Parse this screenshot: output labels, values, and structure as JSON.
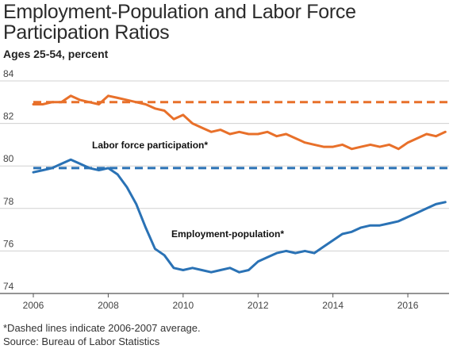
{
  "title": "Employment-Population and Labor Force Participation Ratios",
  "subtitle": "Ages 25-54, percent",
  "footnote": "*Dashed lines indicate 2006-2007 average.",
  "source": "Source: Bureau of Labor Statistics",
  "colors": {
    "lfp": "#e8702a",
    "emp": "#2a72b5",
    "grid": "#d0d0d0",
    "axis": "#555555"
  },
  "chart_data": {
    "type": "line",
    "title": "Employment-Population and Labor Force Participation Ratios",
    "subtitle": "Ages 25-54, percent",
    "xlabel": "",
    "ylabel": "",
    "xlim": [
      2006,
      2017.1
    ],
    "ylim": [
      74,
      84
    ],
    "x_ticks": [
      2006,
      2008,
      2010,
      2012,
      2014,
      2016
    ],
    "y_ticks": [
      74,
      76,
      78,
      80,
      82,
      84
    ],
    "grid": "horizontal",
    "series": [
      {
        "name": "Labor force participation*",
        "color": "#e8702a",
        "x": [
          2006.0,
          2006.25,
          2006.5,
          2006.75,
          2007.0,
          2007.25,
          2007.5,
          2007.75,
          2008.0,
          2008.25,
          2008.5,
          2008.75,
          2009.0,
          2009.25,
          2009.5,
          2009.75,
          2010.0,
          2010.25,
          2010.5,
          2010.75,
          2011.0,
          2011.25,
          2011.5,
          2011.75,
          2012.0,
          2012.25,
          2012.5,
          2012.75,
          2013.0,
          2013.25,
          2013.5,
          2013.75,
          2014.0,
          2014.25,
          2014.5,
          2014.75,
          2015.0,
          2015.25,
          2015.5,
          2015.75,
          2016.0,
          2016.25,
          2016.5,
          2016.75,
          2017.0
        ],
        "values": [
          82.9,
          82.9,
          83.0,
          83.0,
          83.3,
          83.1,
          83.0,
          82.9,
          83.3,
          83.2,
          83.1,
          83.0,
          82.9,
          82.7,
          82.6,
          82.2,
          82.4,
          82.0,
          81.8,
          81.6,
          81.7,
          81.5,
          81.6,
          81.5,
          81.5,
          81.6,
          81.4,
          81.5,
          81.3,
          81.1,
          81.0,
          80.9,
          80.9,
          81.0,
          80.8,
          80.9,
          81.0,
          80.9,
          81.0,
          80.8,
          81.1,
          81.3,
          81.5,
          81.4,
          81.6
        ]
      },
      {
        "name": "Employment-population*",
        "color": "#2a72b5",
        "x": [
          2006.0,
          2006.25,
          2006.5,
          2006.75,
          2007.0,
          2007.25,
          2007.5,
          2007.75,
          2008.0,
          2008.25,
          2008.5,
          2008.75,
          2009.0,
          2009.25,
          2009.5,
          2009.75,
          2010.0,
          2010.25,
          2010.5,
          2010.75,
          2011.0,
          2011.25,
          2011.5,
          2011.75,
          2012.0,
          2012.25,
          2012.5,
          2012.75,
          2013.0,
          2013.25,
          2013.5,
          2013.75,
          2014.0,
          2014.25,
          2014.5,
          2014.75,
          2015.0,
          2015.25,
          2015.5,
          2015.75,
          2016.0,
          2016.25,
          2016.5,
          2016.75,
          2017.0
        ],
        "values": [
          79.7,
          79.8,
          79.9,
          80.1,
          80.3,
          80.1,
          79.9,
          79.8,
          79.9,
          79.6,
          79.0,
          78.2,
          77.1,
          76.1,
          75.8,
          75.2,
          75.1,
          75.2,
          75.1,
          75.0,
          75.1,
          75.2,
          75.0,
          75.1,
          75.5,
          75.7,
          75.9,
          76.0,
          75.9,
          76.0,
          75.9,
          76.2,
          76.5,
          76.8,
          76.9,
          77.1,
          77.2,
          77.2,
          77.3,
          77.4,
          77.6,
          77.8,
          78.0,
          78.2,
          78.3
        ]
      }
    ],
    "reference_lines": [
      {
        "series": "Labor force participation*",
        "value": 83.0,
        "style": "dashed"
      },
      {
        "series": "Employment-population*",
        "value": 79.9,
        "style": "dashed"
      }
    ],
    "annotations": [
      {
        "text": "Labor force participation*"
      },
      {
        "text": "Employment-population*"
      }
    ]
  }
}
